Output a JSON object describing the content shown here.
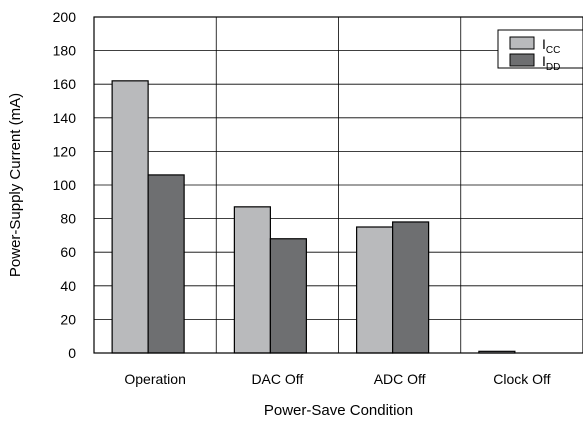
{
  "chart_data": {
    "type": "bar",
    "categories": [
      "Operation",
      "DAC Off",
      "ADC Off",
      "Clock Off"
    ],
    "series": [
      {
        "name": "I_CC",
        "label_main": "I",
        "label_sub": "CC",
        "color": "#b9babc",
        "values": [
          162,
          87,
          75,
          1
        ]
      },
      {
        "name": "I_DD",
        "label_main": "I",
        "label_sub": "DD",
        "color": "#6e6f71",
        "values": [
          106,
          68,
          78,
          0
        ]
      }
    ],
    "xlabel": "Power-Save Condition",
    "ylabel": "Power-Supply Current (mA)",
    "ylim": [
      0,
      200
    ],
    "yticks": [
      0,
      20,
      40,
      60,
      80,
      100,
      120,
      140,
      160,
      180,
      200
    ],
    "grid": "horizontal and vertical",
    "legend_position": "top-right"
  }
}
